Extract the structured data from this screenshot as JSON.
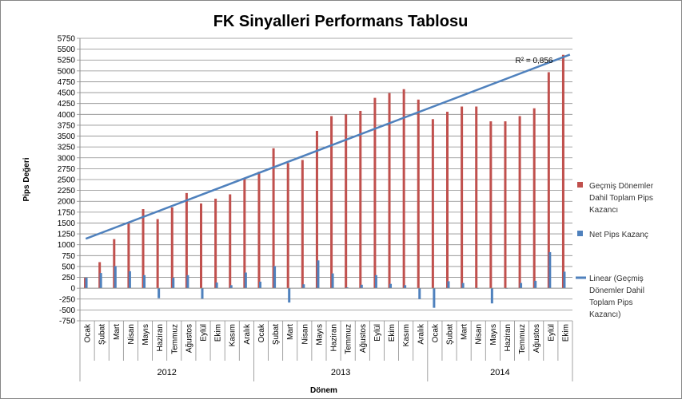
{
  "chart_data": {
    "type": "bar",
    "title": "FK Sinyalleri Performans Tablosu",
    "xlabel": "Dönem",
    "ylabel": "Pips Değeri",
    "ylim": [
      -750,
      5750
    ],
    "ytick_step": 250,
    "grid": true,
    "legend_position": "right",
    "years": [
      {
        "label": "2012",
        "count": 12
      },
      {
        "label": "2013",
        "count": 12
      },
      {
        "label": "2014",
        "count": 10
      }
    ],
    "categories": [
      "Ocak",
      "Şubat",
      "Mart",
      "Nisan",
      "Mayıs",
      "Haziran",
      "Temmuz",
      "Ağustos",
      "Eylül",
      "Ekim",
      "Kasım",
      "Aralık",
      "Ocak",
      "Şubat",
      "Mart",
      "Nisan",
      "Mayıs",
      "Haziran",
      "Temmuz",
      "Ağustos",
      "Eylül",
      "Ekim",
      "Kasım",
      "Aralık",
      "Ocak",
      "Şubat",
      "Mart",
      "Nisan",
      "Mayıs",
      "Haziran",
      "Temmuz",
      "Ağustos",
      "Eylül",
      "Ekim"
    ],
    "series": [
      {
        "name": "Geçmiş Dönemler Dahil Toplam Pips Kazancı",
        "color": "#C0504D",
        "values": [
          240,
          600,
          1130,
          1500,
          1820,
          1590,
          1860,
          2190,
          1950,
          2060,
          2160,
          2520,
          2680,
          3220,
          2880,
          2950,
          3620,
          3960,
          4000,
          4080,
          4380,
          4490,
          4580,
          4340,
          3890,
          4060,
          4180,
          4180,
          3840,
          3840,
          3960,
          4140,
          4970,
          5370
        ]
      },
      {
        "name": "Net Pips Kazanç",
        "color": "#4F81BD",
        "values": [
          240,
          350,
          510,
          390,
          300,
          -230,
          240,
          300,
          -240,
          130,
          70,
          360,
          150,
          510,
          -330,
          90,
          640,
          340,
          20,
          80,
          300,
          100,
          70,
          -250,
          -450,
          160,
          120,
          0,
          -350,
          0,
          120,
          170,
          830,
          380
        ]
      }
    ],
    "trendline": {
      "name": "Linear (Geçmiş Dönemler Dahil Toplam Pips Kazancı)",
      "color": "#4F81BD",
      "start": 1150,
      "end": 5300,
      "r2_label": "R² = 0,856"
    }
  }
}
